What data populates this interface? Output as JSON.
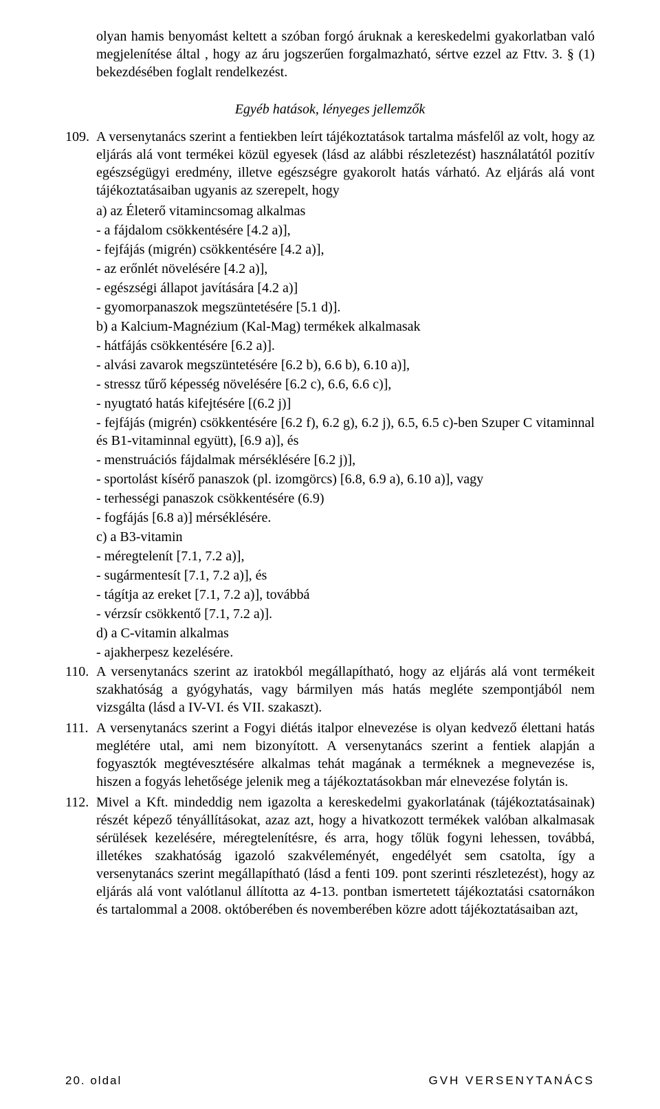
{
  "top_continuation": "olyan hamis benyomást keltett a szóban forgó áruknak a kereskedelmi gyakorlatban való megjelenítése által , hogy az áru jogszerűen forgalmazható, sértve ezzel az Fttv. 3. § (1) bekezdésében foglalt rendelkezést.",
  "section_heading": "Egyéb hatások, lényeges jellemzők",
  "p109": {
    "num": "109.",
    "lead": "A versenytanács szerint a fentiekben leírt tájékoztatások tartalma másfelől az volt, hogy az eljárás alá vont termékei közül egyesek (lásd az alábbi részletezést) használatától pozitív egészségügyi eredmény, illetve egészségre gyakorolt hatás várható. Az eljárás alá vont tájékoztatásaiban ugyanis az szerepelt, hogy",
    "lines": [
      "a) az Életerő vitamincsomag alkalmas",
      "- a fájdalom csökkentésére [4.2 a)],",
      "- fejfájás (migrén) csökkentésére [4.2 a)],",
      "- az erőnlét növelésére [4.2 a)],",
      "- egészségi állapot javítására [4.2 a)]",
      "- gyomorpanaszok megszüntetésére [5.1 d)].",
      "b) a Kalcium-Magnézium (Kal-Mag) termékek alkalmasak",
      "- hátfájás csökkentésére [6.2 a)].",
      "- alvási zavarok megszüntetésére [6.2 b), 6.6 b), 6.10 a)],",
      "- stressz tűrő képesség növelésére [6.2 c), 6.6, 6.6 c)],",
      "- nyugtató hatás kifejtésére [(6.2 j)]",
      "- fejfájás (migrén) csökkentésére [6.2 f), 6.2 g), 6.2 j), 6.5, 6.5 c)-ben Szuper C vitaminnal és B1-vitaminnal együtt), [6.9 a)], és",
      "- menstruációs fájdalmak mérséklésére [6.2 j)],",
      "- sportolást kísérő panaszok (pl. izomgörcs) [6.8, 6.9 a), 6.10 a)], vagy",
      "- terhességi panaszok csökkentésére (6.9)",
      "- fogfájás [6.8 a)] mérséklésére.",
      "c) a B3-vitamin",
      "- méregtelenít [7.1, 7.2 a)],",
      "- sugármentesít [7.1, 7.2 a)], és",
      "- tágítja az ereket [7.1, 7.2 a)], továbbá",
      "- vérzsír csökkentő [7.1, 7.2 a)].",
      "d) a C-vitamin alkalmas",
      "- ajakherpesz kezelésére."
    ]
  },
  "p110": {
    "num": "110.",
    "text": "A versenytanács szerint az iratokból megállapítható, hogy az eljárás alá vont termékeit szakhatóság a gyógyhatás, vagy bármilyen más hatás megléte szempontjából nem vizsgálta (lásd a IV-VI. és VII. szakaszt)."
  },
  "p111": {
    "num": "111.",
    "text": "A versenytanács szerint a Fogyi diétás italpor elnevezése is olyan kedvező élettani hatás meglétére utal, ami nem bizonyított. A versenytanács szerint a fentiek alapján a fogyasztók megtévesztésére alkalmas tehát magának a terméknek a megnevezése is, hiszen a fogyás lehetősége jelenik meg a tájékoztatásokban már elnevezése folytán is."
  },
  "p112": {
    "num": "112.",
    "text": "Mivel a Kft. mindeddig nem igazolta a kereskedelmi gyakorlatának (tájékoztatásainak) részét képező tényállításokat, azaz azt, hogy a hivatkozott termékek valóban alkalmasak sérülések kezelésére, méregtelenítésre, és arra, hogy tőlük fogyni lehessen, továbbá, illetékes szakhatóság igazoló szakvéleményét, engedélyét sem csatolta, így a versenytanács szerint megállapítható (lásd a fenti 109. pont szerinti részletezést), hogy az eljárás alá vont valótlanul állította az 4-13. pontban ismertetett tájékoztatási csatornákon és tartalommal a 2008. októberében és novemberében közre adott tájékoztatásaiban azt,"
  },
  "footer": {
    "left": "20. oldal",
    "right": "GVH VERSENYTANÁCS"
  }
}
